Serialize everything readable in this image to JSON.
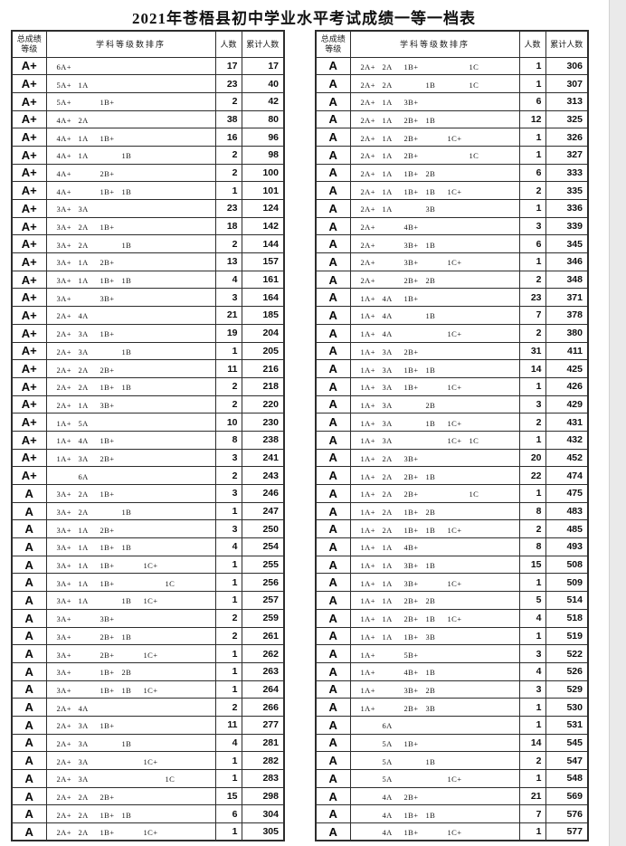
{
  "page_title": "2021年苍梧县初中学业水平考试成绩一等一档表",
  "header": {
    "grade_line1": "总成绩",
    "grade_line2": "等级",
    "subject": "学科等级数排序",
    "count": "人数",
    "cumulative": "累计人数"
  },
  "colors": {
    "table_border": "#2d2d2d",
    "page_background": "#ffffff",
    "right_margin": "#eaeaea",
    "text": "#000000"
  },
  "row_format": [
    "grade",
    "slot_a_plus",
    "slot_a",
    "slot_b_plus",
    "slot_b",
    "slot_c_plus",
    "slot_c",
    "count",
    "cumulative"
  ],
  "tables": [
    {
      "id": "left",
      "rows": [
        [
          "A+",
          "6A+",
          "",
          "",
          "",
          "",
          "",
          17,
          17
        ],
        [
          "A+",
          "5A+",
          "1A",
          "",
          "",
          "",
          "",
          23,
          40
        ],
        [
          "A+",
          "5A+",
          "",
          "1B+",
          "",
          "",
          "",
          2,
          42
        ],
        [
          "A+",
          "4A+",
          "2A",
          "",
          "",
          "",
          "",
          38,
          80
        ],
        [
          "A+",
          "4A+",
          "1A",
          "1B+",
          "",
          "",
          "",
          16,
          96
        ],
        [
          "A+",
          "4A+",
          "1A",
          "",
          "1B",
          "",
          "",
          2,
          98
        ],
        [
          "A+",
          "4A+",
          "",
          "2B+",
          "",
          "",
          "",
          2,
          100
        ],
        [
          "A+",
          "4A+",
          "",
          "1B+",
          "1B",
          "",
          "",
          1,
          101
        ],
        [
          "A+",
          "3A+",
          "3A",
          "",
          "",
          "",
          "",
          23,
          124
        ],
        [
          "A+",
          "3A+",
          "2A",
          "1B+",
          "",
          "",
          "",
          18,
          142
        ],
        [
          "A+",
          "3A+",
          "2A",
          "",
          "1B",
          "",
          "",
          2,
          144
        ],
        [
          "A+",
          "3A+",
          "1A",
          "2B+",
          "",
          "",
          "",
          13,
          157
        ],
        [
          "A+",
          "3A+",
          "1A",
          "1B+",
          "1B",
          "",
          "",
          4,
          161
        ],
        [
          "A+",
          "3A+",
          "",
          "3B+",
          "",
          "",
          "",
          3,
          164
        ],
        [
          "A+",
          "2A+",
          "4A",
          "",
          "",
          "",
          "",
          21,
          185
        ],
        [
          "A+",
          "2A+",
          "3A",
          "1B+",
          "",
          "",
          "",
          19,
          204
        ],
        [
          "A+",
          "2A+",
          "3A",
          "",
          "1B",
          "",
          "",
          1,
          205
        ],
        [
          "A+",
          "2A+",
          "2A",
          "2B+",
          "",
          "",
          "",
          11,
          216
        ],
        [
          "A+",
          "2A+",
          "2A",
          "1B+",
          "1B",
          "",
          "",
          2,
          218
        ],
        [
          "A+",
          "2A+",
          "1A",
          "3B+",
          "",
          "",
          "",
          2,
          220
        ],
        [
          "A+",
          "1A+",
          "5A",
          "",
          "",
          "",
          "",
          10,
          230
        ],
        [
          "A+",
          "1A+",
          "4A",
          "1B+",
          "",
          "",
          "",
          8,
          238
        ],
        [
          "A+",
          "1A+",
          "3A",
          "2B+",
          "",
          "",
          "",
          3,
          241
        ],
        [
          "A+",
          "",
          "6A",
          "",
          "",
          "",
          "",
          2,
          243
        ],
        [
          "A",
          "3A+",
          "2A",
          "1B+",
          "",
          "",
          "",
          3,
          246
        ],
        [
          "A",
          "3A+",
          "2A",
          "",
          "1B",
          "",
          "",
          1,
          247
        ],
        [
          "A",
          "3A+",
          "1A",
          "2B+",
          "",
          "",
          "",
          3,
          250
        ],
        [
          "A",
          "3A+",
          "1A",
          "1B+",
          "1B",
          "",
          "",
          4,
          254
        ],
        [
          "A",
          "3A+",
          "1A",
          "1B+",
          "",
          "1C+",
          "",
          1,
          255
        ],
        [
          "A",
          "3A+",
          "1A",
          "1B+",
          "",
          "",
          "1C",
          1,
          256
        ],
        [
          "A",
          "3A+",
          "1A",
          "",
          "1B",
          "1C+",
          "",
          1,
          257
        ],
        [
          "A",
          "3A+",
          "",
          "3B+",
          "",
          "",
          "",
          2,
          259
        ],
        [
          "A",
          "3A+",
          "",
          "2B+",
          "1B",
          "",
          "",
          2,
          261
        ],
        [
          "A",
          "3A+",
          "",
          "2B+",
          "",
          "1C+",
          "",
          1,
          262
        ],
        [
          "A",
          "3A+",
          "",
          "1B+",
          "2B",
          "",
          "",
          1,
          263
        ],
        [
          "A",
          "3A+",
          "",
          "1B+",
          "1B",
          "1C+",
          "",
          1,
          264
        ],
        [
          "A",
          "2A+",
          "4A",
          "",
          "",
          "",
          "",
          2,
          266
        ],
        [
          "A",
          "2A+",
          "3A",
          "1B+",
          "",
          "",
          "",
          11,
          277
        ],
        [
          "A",
          "2A+",
          "3A",
          "",
          "1B",
          "",
          "",
          4,
          281
        ],
        [
          "A",
          "2A+",
          "3A",
          "",
          "",
          "1C+",
          "",
          1,
          282
        ],
        [
          "A",
          "2A+",
          "3A",
          "",
          "",
          "",
          "1C",
          1,
          283
        ],
        [
          "A",
          "2A+",
          "2A",
          "2B+",
          "",
          "",
          "",
          15,
          298
        ],
        [
          "A",
          "2A+",
          "2A",
          "1B+",
          "1B",
          "",
          "",
          6,
          304
        ],
        [
          "A",
          "2A+",
          "2A",
          "1B+",
          "",
          "1C+",
          "",
          1,
          305
        ]
      ]
    },
    {
      "id": "right",
      "rows": [
        [
          "A",
          "2A+",
          "2A",
          "1B+",
          "",
          "",
          "1C",
          1,
          306
        ],
        [
          "A",
          "2A+",
          "2A",
          "",
          "1B",
          "",
          "1C",
          1,
          307
        ],
        [
          "A",
          "2A+",
          "1A",
          "3B+",
          "",
          "",
          "",
          6,
          313
        ],
        [
          "A",
          "2A+",
          "1A",
          "2B+",
          "1B",
          "",
          "",
          12,
          325
        ],
        [
          "A",
          "2A+",
          "1A",
          "2B+",
          "",
          "1C+",
          "",
          1,
          326
        ],
        [
          "A",
          "2A+",
          "1A",
          "2B+",
          "",
          "",
          "1C",
          1,
          327
        ],
        [
          "A",
          "2A+",
          "1A",
          "1B+",
          "2B",
          "",
          "",
          6,
          333
        ],
        [
          "A",
          "2A+",
          "1A",
          "1B+",
          "1B",
          "1C+",
          "",
          2,
          335
        ],
        [
          "A",
          "2A+",
          "1A",
          "",
          "3B",
          "",
          "",
          1,
          336
        ],
        [
          "A",
          "2A+",
          "",
          "4B+",
          "",
          "",
          "",
          3,
          339
        ],
        [
          "A",
          "2A+",
          "",
          "3B+",
          "1B",
          "",
          "",
          6,
          345
        ],
        [
          "A",
          "2A+",
          "",
          "3B+",
          "",
          "1C+",
          "",
          1,
          346
        ],
        [
          "A",
          "2A+",
          "",
          "2B+",
          "2B",
          "",
          "",
          2,
          348
        ],
        [
          "A",
          "1A+",
          "4A",
          "1B+",
          "",
          "",
          "",
          23,
          371
        ],
        [
          "A",
          "1A+",
          "4A",
          "",
          "1B",
          "",
          "",
          7,
          378
        ],
        [
          "A",
          "1A+",
          "4A",
          "",
          "",
          "1C+",
          "",
          2,
          380
        ],
        [
          "A",
          "1A+",
          "3A",
          "2B+",
          "",
          "",
          "",
          31,
          411
        ],
        [
          "A",
          "1A+",
          "3A",
          "1B+",
          "1B",
          "",
          "",
          14,
          425
        ],
        [
          "A",
          "1A+",
          "3A",
          "1B+",
          "",
          "1C+",
          "",
          1,
          426
        ],
        [
          "A",
          "1A+",
          "3A",
          "",
          "2B",
          "",
          "",
          3,
          429
        ],
        [
          "A",
          "1A+",
          "3A",
          "",
          "1B",
          "1C+",
          "",
          2,
          431
        ],
        [
          "A",
          "1A+",
          "3A",
          "",
          "",
          "1C+",
          "1C",
          1,
          432
        ],
        [
          "A",
          "1A+",
          "2A",
          "3B+",
          "",
          "",
          "",
          20,
          452
        ],
        [
          "A",
          "1A+",
          "2A",
          "2B+",
          "1B",
          "",
          "",
          22,
          474
        ],
        [
          "A",
          "1A+",
          "2A",
          "2B+",
          "",
          "",
          "1C",
          1,
          475
        ],
        [
          "A",
          "1A+",
          "2A",
          "1B+",
          "2B",
          "",
          "",
          8,
          483
        ],
        [
          "A",
          "1A+",
          "2A",
          "1B+",
          "1B",
          "1C+",
          "",
          2,
          485
        ],
        [
          "A",
          "1A+",
          "1A",
          "4B+",
          "",
          "",
          "",
          8,
          493
        ],
        [
          "A",
          "1A+",
          "1A",
          "3B+",
          "1B",
          "",
          "",
          15,
          508
        ],
        [
          "A",
          "1A+",
          "1A",
          "3B+",
          "",
          "1C+",
          "",
          1,
          509
        ],
        [
          "A",
          "1A+",
          "1A",
          "2B+",
          "2B",
          "",
          "",
          5,
          514
        ],
        [
          "A",
          "1A+",
          "1A",
          "2B+",
          "1B",
          "1C+",
          "",
          4,
          518
        ],
        [
          "A",
          "1A+",
          "1A",
          "1B+",
          "3B",
          "",
          "",
          1,
          519
        ],
        [
          "A",
          "1A+",
          "",
          "5B+",
          "",
          "",
          "",
          3,
          522
        ],
        [
          "A",
          "1A+",
          "",
          "4B+",
          "1B",
          "",
          "",
          4,
          526
        ],
        [
          "A",
          "1A+",
          "",
          "3B+",
          "2B",
          "",
          "",
          3,
          529
        ],
        [
          "A",
          "1A+",
          "",
          "2B+",
          "3B",
          "",
          "",
          1,
          530
        ],
        [
          "A",
          "",
          "6A",
          "",
          "",
          "",
          "",
          1,
          531
        ],
        [
          "A",
          "",
          "5A",
          "1B+",
          "",
          "",
          "",
          14,
          545
        ],
        [
          "A",
          "",
          "5A",
          "",
          "1B",
          "",
          "",
          2,
          547
        ],
        [
          "A",
          "",
          "5A",
          "",
          "",
          "1C+",
          "",
          1,
          548
        ],
        [
          "A",
          "",
          "4A",
          "2B+",
          "",
          "",
          "",
          21,
          569
        ],
        [
          "A",
          "",
          "4A",
          "1B+",
          "1B",
          "",
          "",
          7,
          576
        ],
        [
          "A",
          "",
          "4A",
          "1B+",
          "",
          "1C+",
          "",
          1,
          577
        ]
      ]
    }
  ]
}
